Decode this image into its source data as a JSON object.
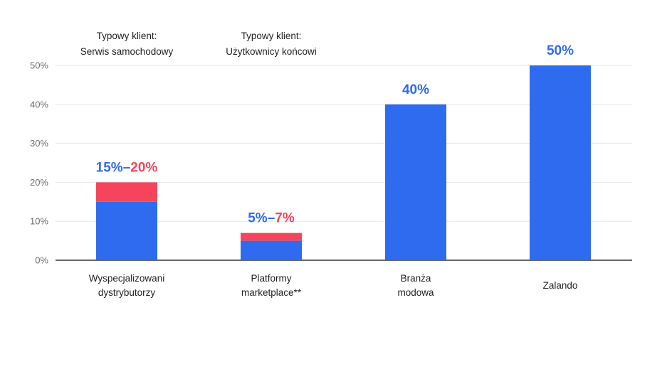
{
  "chart_data": {
    "type": "bar",
    "stacked": true,
    "title": "",
    "xlabel": "",
    "ylabel": "",
    "ylim": [
      0,
      50
    ],
    "yticks": [
      0,
      10,
      20,
      30,
      40,
      50
    ],
    "ytick_labels": [
      "0%",
      "10%",
      "20%",
      "30%",
      "40%",
      "50%"
    ],
    "grid": true,
    "categories": [
      [
        "Wyspecjalizowani",
        "dystrybutorzy"
      ],
      [
        "Platformy",
        "marketplace**"
      ],
      [
        "Branża",
        "modowa"
      ],
      [
        "Zalando"
      ]
    ],
    "series": [
      {
        "name": "min",
        "color": "#2f6bef",
        "values": [
          15,
          5,
          40,
          50
        ]
      },
      {
        "name": "range",
        "color": "#f5455c",
        "values": [
          5,
          2,
          0,
          0
        ]
      }
    ],
    "data_labels": [
      {
        "low": "15%",
        "sep": "–",
        "high": "20%"
      },
      {
        "low": "5%",
        "sep": "–",
        "high": "7%"
      },
      {
        "low": "40%",
        "sep": "",
        "high": ""
      },
      {
        "low": "50%",
        "sep": "",
        "high": ""
      }
    ],
    "annotations": [
      {
        "category_index": 0,
        "lines": [
          "Typowy klient:",
          "Serwis samochodowy"
        ]
      },
      {
        "category_index": 1,
        "lines": [
          "Typowy klient:",
          "Użytkownicy końcowi"
        ]
      }
    ],
    "colors": {
      "low_label": "#2f6bef",
      "high_label": "#f5455c",
      "sep_label": "#2f6bef",
      "grid": "#e6e6e6",
      "axis": "#333333"
    }
  }
}
